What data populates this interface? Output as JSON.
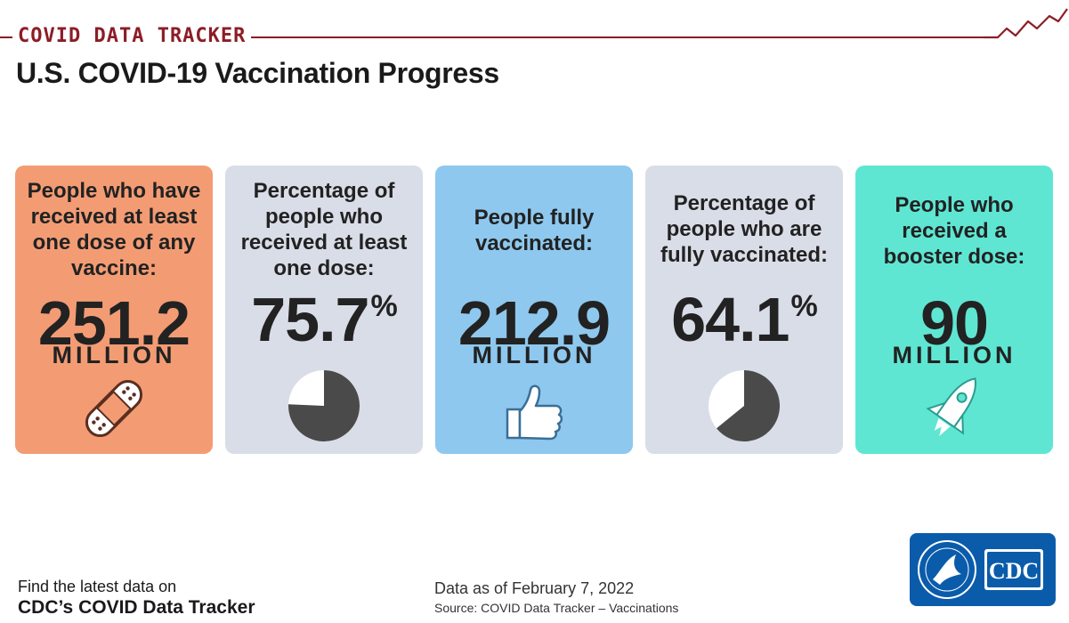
{
  "header": {
    "tracker_label": "COVID DATA TRACKER",
    "title": "U.S. COVID-19 Vaccination Progress",
    "accent_color": "#8c1d26"
  },
  "cards": [
    {
      "label": "People who have received at least one dose of any vaccine:",
      "value": "251.2",
      "unit": "MILLION",
      "bg": "#f39c74",
      "icon": "bandage-icon"
    },
    {
      "label": "Percentage of people who received at least one dose:",
      "value": "75.7",
      "unit": "%",
      "percent": 75.7,
      "bg": "#d9dde8",
      "icon": "pie-chart-icon"
    },
    {
      "label": "People fully vaccinated:",
      "value": "212.9",
      "unit": "MILLION",
      "bg": "#8ec8ee",
      "icon": "thumbs-up-icon"
    },
    {
      "label": "Percentage of people who are fully vaccinated:",
      "value": "64.1",
      "unit": "%",
      "percent": 64.1,
      "bg": "#d9dde8",
      "icon": "pie-chart-icon"
    },
    {
      "label": "People who received a booster dose:",
      "value": "90",
      "unit": "MILLION",
      "bg": "#5fe6d3",
      "icon": "rocket-icon"
    }
  ],
  "footer": {
    "cta_line1": "Find the latest data on",
    "cta_line2": "CDC’s COVID Data Tracker",
    "date": "Data as of February 7, 2022",
    "source": "Source: COVID Data Tracker – Vaccinations",
    "logo_text": "CDC",
    "logo_color": "#0a5cab"
  }
}
